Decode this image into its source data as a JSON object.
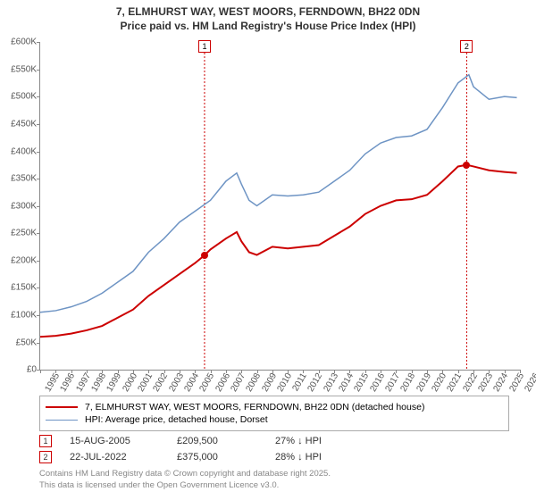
{
  "title": {
    "line1": "7, ELMHURST WAY, WEST MOORS, FERNDOWN, BH22 0DN",
    "line2": "Price paid vs. HM Land Registry's House Price Index (HPI)"
  },
  "chart": {
    "type": "line",
    "background_color": "#ffffff",
    "axis_color": "#888888",
    "x": {
      "min": 1995,
      "max": 2026,
      "tick_step": 1,
      "label_fontsize": 10
    },
    "y": {
      "min": 0,
      "max": 600000,
      "tick_step": 50000,
      "prefix": "£",
      "suffix": "K",
      "label_fontsize": 10
    },
    "series": [
      {
        "id": "price_paid",
        "label": "7, ELMHURST WAY, WEST MOORS, FERNDOWN, BH22 0DN (detached house)",
        "color": "#cc0000",
        "line_width": 2,
        "points": [
          [
            1995,
            60000
          ],
          [
            1996,
            62000
          ],
          [
            1997,
            66000
          ],
          [
            1998,
            72000
          ],
          [
            1999,
            80000
          ],
          [
            2000,
            95000
          ],
          [
            2001,
            110000
          ],
          [
            2002,
            135000
          ],
          [
            2003,
            155000
          ],
          [
            2004,
            175000
          ],
          [
            2005,
            195000
          ],
          [
            2005.62,
            209500
          ],
          [
            2006,
            220000
          ],
          [
            2007,
            240000
          ],
          [
            2007.7,
            252000
          ],
          [
            2008,
            235000
          ],
          [
            2008.5,
            215000
          ],
          [
            2009,
            210000
          ],
          [
            2010,
            225000
          ],
          [
            2011,
            222000
          ],
          [
            2012,
            225000
          ],
          [
            2013,
            228000
          ],
          [
            2014,
            245000
          ],
          [
            2015,
            262000
          ],
          [
            2016,
            285000
          ],
          [
            2017,
            300000
          ],
          [
            2018,
            310000
          ],
          [
            2019,
            312000
          ],
          [
            2020,
            320000
          ],
          [
            2021,
            345000
          ],
          [
            2022,
            372000
          ],
          [
            2022.56,
            375000
          ],
          [
            2023,
            372000
          ],
          [
            2024,
            365000
          ],
          [
            2025,
            362000
          ],
          [
            2025.8,
            360000
          ]
        ]
      },
      {
        "id": "hpi",
        "label": "HPI: Average price, detached house, Dorset",
        "color": "#6e94c4",
        "line_width": 1.5,
        "points": [
          [
            1995,
            105000
          ],
          [
            1996,
            108000
          ],
          [
            1997,
            115000
          ],
          [
            1998,
            125000
          ],
          [
            1999,
            140000
          ],
          [
            2000,
            160000
          ],
          [
            2001,
            180000
          ],
          [
            2002,
            215000
          ],
          [
            2003,
            240000
          ],
          [
            2004,
            270000
          ],
          [
            2005,
            290000
          ],
          [
            2006,
            310000
          ],
          [
            2007,
            345000
          ],
          [
            2007.7,
            360000
          ],
          [
            2008,
            340000
          ],
          [
            2008.5,
            310000
          ],
          [
            2009,
            300000
          ],
          [
            2010,
            320000
          ],
          [
            2011,
            318000
          ],
          [
            2012,
            320000
          ],
          [
            2013,
            325000
          ],
          [
            2014,
            345000
          ],
          [
            2015,
            365000
          ],
          [
            2016,
            395000
          ],
          [
            2017,
            415000
          ],
          [
            2018,
            425000
          ],
          [
            2019,
            428000
          ],
          [
            2020,
            440000
          ],
          [
            2021,
            480000
          ],
          [
            2022,
            525000
          ],
          [
            2022.7,
            540000
          ],
          [
            2023,
            518000
          ],
          [
            2024,
            495000
          ],
          [
            2025,
            500000
          ],
          [
            2025.8,
            498000
          ]
        ]
      }
    ],
    "markers": [
      {
        "n": "1",
        "x": 2005.62,
        "y_price": 209500,
        "color": "#cc0000"
      },
      {
        "n": "2",
        "x": 2022.56,
        "y_price": 375000,
        "color": "#cc0000"
      }
    ]
  },
  "legend": {
    "s0": "7, ELMHURST WAY, WEST MOORS, FERNDOWN, BH22 0DN (detached house)",
    "s1": "HPI: Average price, detached house, Dorset"
  },
  "sales": [
    {
      "n": "1",
      "date": "15-AUG-2005",
      "price": "£209,500",
      "diff": "27% ↓ HPI",
      "color": "#cc0000"
    },
    {
      "n": "2",
      "date": "22-JUL-2022",
      "price": "£375,000",
      "diff": "28% ↓ HPI",
      "color": "#cc0000"
    }
  ],
  "footer": {
    "l1": "Contains HM Land Registry data © Crown copyright and database right 2025.",
    "l2": "This data is licensed under the Open Government Licence v3.0."
  },
  "colors": {
    "red": "#cc0000",
    "blue": "#6e94c4"
  }
}
